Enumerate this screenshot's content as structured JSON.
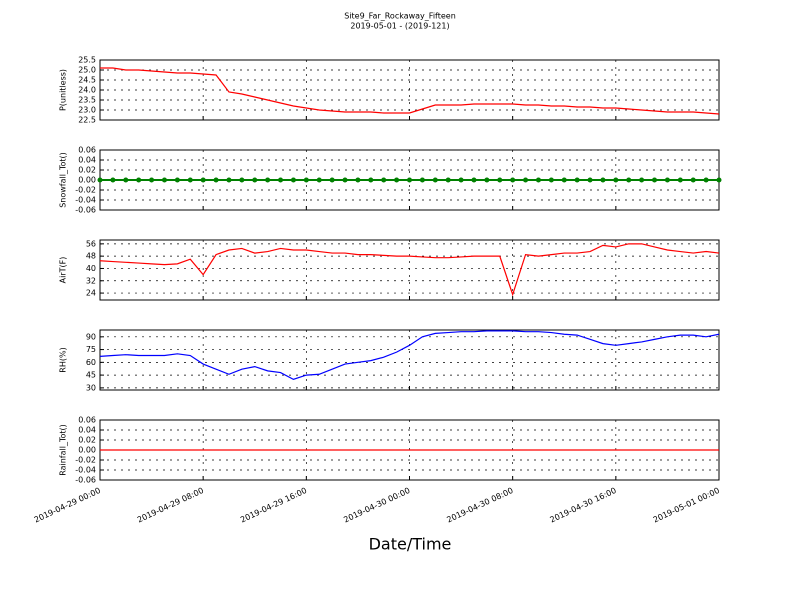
{
  "chart_data": {
    "type": "line",
    "title": "Site9_Far_Rockaway_Fifteen",
    "subtitle": "2019-05-01 - (2019-121)",
    "xlabel": "Date/Time",
    "grid": true,
    "xlim": [
      "2019-04-29 00:00",
      "2019-05-01 00:00"
    ],
    "xticks": [
      "2019-04-29 00:00",
      "2019-04-29 08:00",
      "2019-04-29 16:00",
      "2019-04-30 00:00",
      "2019-04-30 08:00",
      "2019-04-30 16:00",
      "2019-05-01 00:00"
    ],
    "x": [
      "2019-04-29 00:00",
      "2019-04-29 01:00",
      "2019-04-29 02:00",
      "2019-04-29 03:00",
      "2019-04-29 04:00",
      "2019-04-29 05:00",
      "2019-04-29 06:00",
      "2019-04-29 07:00",
      "2019-04-29 08:00",
      "2019-04-29 09:00",
      "2019-04-29 10:00",
      "2019-04-29 11:00",
      "2019-04-29 12:00",
      "2019-04-29 13:00",
      "2019-04-29 14:00",
      "2019-04-29 15:00",
      "2019-04-29 16:00",
      "2019-04-29 17:00",
      "2019-04-29 18:00",
      "2019-04-29 19:00",
      "2019-04-29 20:00",
      "2019-04-29 21:00",
      "2019-04-29 22:00",
      "2019-04-29 23:00",
      "2019-04-30 00:00",
      "2019-04-30 01:00",
      "2019-04-30 02:00",
      "2019-04-30 03:00",
      "2019-04-30 04:00",
      "2019-04-30 05:00",
      "2019-04-30 06:00",
      "2019-04-30 07:00",
      "2019-04-30 08:00",
      "2019-04-30 09:00",
      "2019-04-30 10:00",
      "2019-04-30 11:00",
      "2019-04-30 12:00",
      "2019-04-30 13:00",
      "2019-04-30 14:00",
      "2019-04-30 15:00",
      "2019-04-30 16:00",
      "2019-04-30 17:00",
      "2019-04-30 18:00",
      "2019-04-30 19:00",
      "2019-04-30 20:00",
      "2019-04-30 21:00",
      "2019-04-30 22:00",
      "2019-04-30 23:00",
      "2019-05-01 00:00"
    ],
    "panels": [
      {
        "ylabel": "P(unitless)",
        "ylim": [
          22.5,
          25.5
        ],
        "yticks": [
          22.5,
          {
            "value": 23,
            "label": "23.0"
          },
          23.5,
          {
            "value": 24,
            "label": "24.0"
          },
          24.5,
          {
            "value": 25,
            "label": "25.0"
          },
          25.5
        ],
        "series": [
          {
            "color": "#ff0000",
            "marker": false,
            "values": [
              25.1,
              25.1,
              25.0,
              25.0,
              24.95,
              24.9,
              24.85,
              24.85,
              24.8,
              24.75,
              23.9,
              23.8,
              23.65,
              23.5,
              23.35,
              23.2,
              23.1,
              23.0,
              22.95,
              22.9,
              22.9,
              22.9,
              22.85,
              22.85,
              22.85,
              23.05,
              23.25,
              23.25,
              23.25,
              23.3,
              23.3,
              23.3,
              23.3,
              23.25,
              23.25,
              23.2,
              23.2,
              23.15,
              23.15,
              23.1,
              23.1,
              23.05,
              23.0,
              22.95,
              22.9,
              22.9,
              22.9,
              22.85,
              22.8
            ]
          }
        ]
      },
      {
        "ylabel": "Snowfall_Tot()",
        "ylim": [
          -0.06,
          0.06
        ],
        "yticks": [
          -0.06,
          -0.04,
          -0.02,
          {
            "value": 0,
            "label": "0.00"
          },
          0.02,
          0.04,
          0.06
        ],
        "series": [
          {
            "color": "#008000",
            "marker": true,
            "values": [
              0,
              0,
              0,
              0,
              0,
              0,
              0,
              0,
              0,
              0,
              0,
              0,
              0,
              0,
              0,
              0,
              0,
              0,
              0,
              0,
              0,
              0,
              0,
              0,
              0,
              0,
              0,
              0,
              0,
              0,
              0,
              0,
              0,
              0,
              0,
              0,
              0,
              0,
              0,
              0,
              0,
              0,
              0,
              0,
              0,
              0,
              0,
              0,
              0
            ]
          }
        ]
      },
      {
        "ylabel": "AirT(F)",
        "ylim": [
          19.5,
          58.5
        ],
        "yticks": [
          24,
          32,
          40,
          48,
          56
        ],
        "series": [
          {
            "color": "#ff0000",
            "marker": false,
            "values": [
              45,
              44.5,
              44,
              43.5,
              43,
              42.5,
              43,
              46,
              36,
              49,
              52,
              53,
              50,
              51,
              53,
              52,
              52,
              51,
              50,
              50,
              49,
              49,
              48.5,
              48,
              48,
              47.5,
              47,
              47,
              47.5,
              48,
              48,
              48,
              23,
              49,
              48,
              49,
              50,
              50,
              51,
              55,
              54,
              56,
              56,
              54,
              52,
              51,
              50,
              51,
              50
            ]
          }
        ]
      },
      {
        "ylabel": "RH(%)",
        "ylim": [
          27.5,
          98
        ],
        "yticks": [
          30,
          45,
          60,
          75,
          90
        ],
        "series": [
          {
            "color": "#0000ff",
            "marker": false,
            "values": [
              67,
              68,
              69,
              68,
              68,
              68,
              70,
              68,
              58,
              52,
              46,
              52,
              55,
              50,
              48,
              40,
              45,
              46,
              52,
              58,
              60,
              62,
              66,
              72,
              80,
              90,
              94,
              95,
              96,
              96,
              97,
              97,
              97,
              96,
              96,
              95,
              93,
              92,
              87,
              82,
              80,
              82,
              84,
              87,
              90,
              92,
              92,
              90,
              93
            ]
          }
        ]
      },
      {
        "ylabel": "Rainfall_Tot()",
        "ylim": [
          -0.06,
          0.06
        ],
        "yticks": [
          -0.06,
          -0.04,
          -0.02,
          {
            "value": 0,
            "label": "0.00"
          },
          0.02,
          0.04,
          0.06
        ],
        "series": [
          {
            "color": "#ff0000",
            "marker": false,
            "values": [
              0,
              0,
              0,
              0,
              0,
              0,
              0,
              0,
              0,
              0,
              0,
              0,
              0,
              0,
              0,
              0,
              0,
              0,
              0,
              0,
              0,
              0,
              0,
              0,
              0,
              0,
              0,
              0,
              0,
              0,
              0,
              0,
              0,
              0,
              0,
              0,
              0,
              0,
              0,
              0,
              0,
              0,
              0,
              0,
              0,
              0,
              0,
              0,
              0
            ]
          }
        ]
      }
    ]
  }
}
